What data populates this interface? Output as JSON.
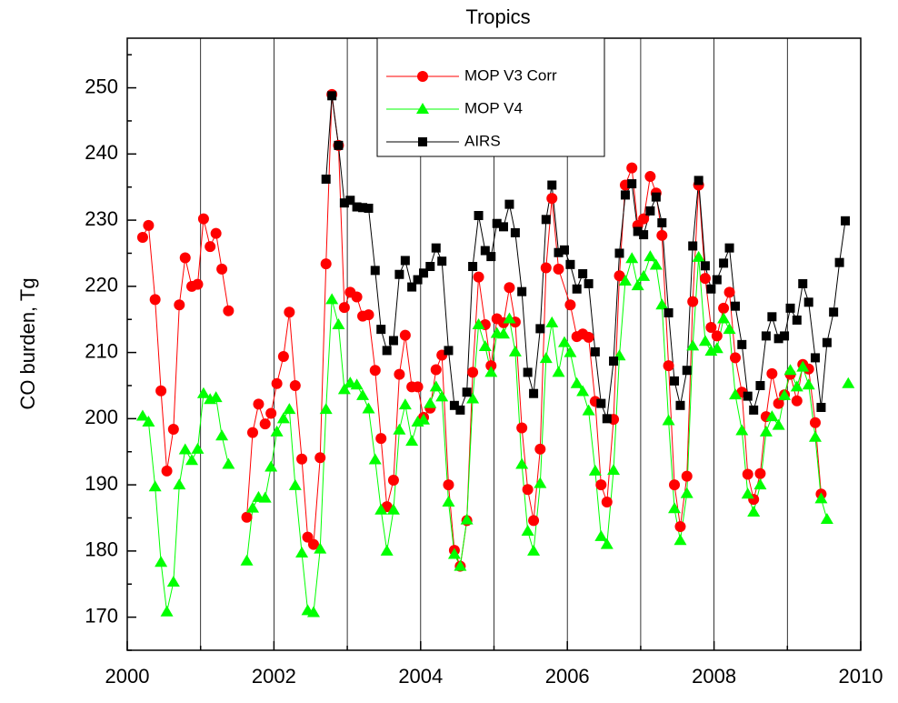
{
  "chart_data": {
    "type": "line",
    "title": "Tropics",
    "y_label": "CO burden, Tg",
    "xlim": [
      2000,
      2010
    ],
    "xticks": [
      2000,
      2002,
      2004,
      2006,
      2008,
      2010
    ],
    "x_minor_ticks": [
      2001,
      2003,
      2005,
      2007,
      2009
    ],
    "ylim": [
      165,
      257.5
    ],
    "yticks": [
      170,
      180,
      190,
      200,
      210,
      220,
      230,
      240,
      250
    ],
    "y_minor_ticks": [
      165,
      175,
      185,
      195,
      205,
      215,
      225,
      235,
      245,
      255
    ],
    "grid": "x",
    "legend": "top-center",
    "series": [
      {
        "name": "MOP V3 Corr",
        "color": "#ff0000",
        "marker": "circle",
        "x": [
          2000.21,
          2000.29,
          2000.38,
          2000.46,
          2000.54,
          2000.63,
          2000.71,
          2000.79,
          2000.88,
          2000.96,
          2001.04,
          2001.13,
          2001.21,
          2001.29,
          2001.38,
          2001.5,
          2001.63,
          2001.71,
          2001.79,
          2001.88,
          2001.96,
          2002.04,
          2002.13,
          2002.21,
          2002.29,
          2002.38,
          2002.46,
          2002.54,
          2002.63,
          2002.71,
          2002.79,
          2002.88,
          2002.96,
          2003.04,
          2003.13,
          2003.21,
          2003.29,
          2003.38,
          2003.46,
          2003.54,
          2003.63,
          2003.71,
          2003.79,
          2003.88,
          2003.96,
          2004.04,
          2004.13,
          2004.21,
          2004.29,
          2004.38,
          2004.46,
          2004.54,
          2004.63,
          2004.71,
          2004.79,
          2004.88,
          2004.96,
          2005.04,
          2005.13,
          2005.21,
          2005.29,
          2005.38,
          2005.46,
          2005.54,
          2005.63,
          2005.71,
          2005.79,
          2005.88,
          2006.04,
          2006.13,
          2006.21,
          2006.29,
          2006.38,
          2006.46,
          2006.54,
          2006.63,
          2006.71,
          2006.79,
          2006.88,
          2006.96,
          2007.04,
          2007.13,
          2007.21,
          2007.29,
          2007.38,
          2007.46,
          2007.54,
          2007.63,
          2007.71,
          2007.79,
          2007.88,
          2007.96,
          2008.04,
          2008.13,
          2008.21,
          2008.29,
          2008.38,
          2008.46,
          2008.54,
          2008.63,
          2008.71,
          2008.79,
          2008.88,
          2008.96,
          2009.04,
          2009.13,
          2009.21,
          2009.29,
          2009.38,
          2009.46
        ],
        "values": [
          227.4,
          229.2,
          218,
          204.2,
          192.1,
          198.4,
          217.2,
          224.3,
          220,
          220.3,
          230.2,
          226,
          228,
          222.6,
          216.3,
          null,
          185.1,
          197.9,
          202.2,
          199.2,
          200.8,
          205.3,
          209.4,
          216.1,
          205,
          193.9,
          182.1,
          181,
          194.1,
          223.4,
          249,
          241.3,
          216.8,
          219.1,
          218.4,
          215.5,
          215.7,
          207.3,
          197,
          186.7,
          190.7,
          206.7,
          212.6,
          204.8,
          204.8,
          200.2,
          201.6,
          207.4,
          209.6,
          190,
          180.1,
          177.7,
          184.6,
          207,
          221.4,
          214.2,
          208,
          215.1,
          214.5,
          219.8,
          214.6,
          198.6,
          189.3,
          184.6,
          195.4,
          222.8,
          233.3,
          222.6,
          217.2,
          212.4,
          212.8,
          212.3,
          202.6,
          190,
          187.4,
          199.9,
          221.6,
          235.3,
          237.9,
          229.2,
          230.2,
          236.6,
          234.1,
          227.7,
          208,
          190,
          183.7,
          191.3,
          217.7,
          235.3,
          221.2,
          213.8,
          212.5,
          216.7,
          219.1,
          209.2,
          204,
          191.6,
          187.8,
          191.7,
          200.3,
          206.8,
          202.3,
          203.6,
          206.7,
          202.7,
          208.2,
          207.5,
          199.4,
          188.6
        ]
      },
      {
        "name": "MOP V4",
        "color": "#00ff00",
        "marker": "triangle",
        "x": [
          2000.21,
          2000.29,
          2000.38,
          2000.46,
          2000.54,
          2000.63,
          2000.71,
          2000.79,
          2000.88,
          2000.96,
          2001.04,
          2001.13,
          2001.21,
          2001.29,
          2001.38,
          2001.5,
          2001.63,
          2001.71,
          2001.79,
          2001.88,
          2001.96,
          2002.04,
          2002.13,
          2002.21,
          2002.29,
          2002.38,
          2002.46,
          2002.54,
          2002.63,
          2002.71,
          2002.79,
          2002.88,
          2002.96,
          2003.04,
          2003.13,
          2003.21,
          2003.29,
          2003.38,
          2003.46,
          2003.54,
          2003.63,
          2003.71,
          2003.79,
          2003.88,
          2003.96,
          2004.04,
          2004.13,
          2004.21,
          2004.29,
          2004.38,
          2004.46,
          2004.54,
          2004.63,
          2004.71,
          2004.79,
          2004.88,
          2004.96,
          2005.04,
          2005.13,
          2005.21,
          2005.29,
          2005.38,
          2005.46,
          2005.54,
          2005.63,
          2005.71,
          2005.79,
          2005.88,
          2005.96,
          2006.04,
          2006.13,
          2006.21,
          2006.29,
          2006.38,
          2006.46,
          2006.54,
          2006.63,
          2006.71,
          2006.79,
          2006.88,
          2006.96,
          2007.04,
          2007.13,
          2007.21,
          2007.29,
          2007.38,
          2007.46,
          2007.54,
          2007.63,
          2007.71,
          2007.79,
          2007.88,
          2007.96,
          2008.04,
          2008.13,
          2008.21,
          2008.29,
          2008.38,
          2008.46,
          2008.54,
          2008.63,
          2008.71,
          2008.79,
          2008.88,
          2008.96,
          2009.04,
          2009.13,
          2009.21,
          2009.29,
          2009.38,
          2009.46,
          2009.54,
          2009.63,
          2009.83
        ],
        "values": [
          200.4,
          199.5,
          189.7,
          178.3,
          170.8,
          175.3,
          190,
          195.3,
          193.7,
          195.4,
          203.8,
          202.9,
          203.2,
          197.4,
          193.1,
          null,
          178.5,
          186.5,
          188.1,
          188,
          192.7,
          198,
          200,
          201.4,
          189.9,
          179.7,
          171,
          170.7,
          180.3,
          201.4,
          218,
          214.2,
          204.4,
          205.4,
          205.1,
          203.5,
          201.5,
          193.8,
          186.2,
          180,
          186.2,
          198.3,
          202.1,
          196.6,
          199.5,
          199.8,
          202.3,
          204.8,
          203.3,
          187.4,
          179.5,
          177.7,
          184.7,
          203,
          214.2,
          210.9,
          207,
          212.9,
          212.8,
          215.1,
          210.1,
          193.1,
          183,
          180,
          190.2,
          209.1,
          214.5,
          207,
          211.5,
          210,
          205.3,
          204.1,
          201.2,
          192.1,
          182.2,
          181,
          192.2,
          209.5,
          220.8,
          224.2,
          220.1,
          221.5,
          224.5,
          223.2,
          217.2,
          199.7,
          186.4,
          181.6,
          188.7,
          211,
          224.4,
          211.7,
          210.2,
          210.6,
          215.1,
          213.5,
          203.6,
          198.2,
          188.6,
          185.9,
          190,
          198,
          200.3,
          199,
          203.5,
          207.3,
          204.8,
          207.8,
          205.1,
          197.2,
          187.9,
          184.8,
          null,
          205.3
        ]
      },
      {
        "name": "AIRS",
        "color": "#000000",
        "marker": "square",
        "x": [
          2002.71,
          2002.79,
          2002.88,
          2002.96,
          2003.04,
          2003.13,
          2003.21,
          2003.29,
          2003.38,
          2003.46,
          2003.54,
          2003.63,
          2003.71,
          2003.79,
          2003.88,
          2003.96,
          2004.04,
          2004.13,
          2004.21,
          2004.29,
          2004.38,
          2004.46,
          2004.54,
          2004.63,
          2004.71,
          2004.79,
          2004.88,
          2004.96,
          2005.04,
          2005.13,
          2005.21,
          2005.29,
          2005.38,
          2005.46,
          2005.54,
          2005.63,
          2005.71,
          2005.79,
          2005.88,
          2005.96,
          2006.04,
          2006.13,
          2006.21,
          2006.29,
          2006.38,
          2006.46,
          2006.54,
          2006.63,
          2006.71,
          2006.79,
          2006.88,
          2006.96,
          2007.04,
          2007.13,
          2007.21,
          2007.29,
          2007.38,
          2007.46,
          2007.54,
          2007.63,
          2007.71,
          2007.79,
          2007.88,
          2007.96,
          2008.04,
          2008.13,
          2008.21,
          2008.29,
          2008.38,
          2008.46,
          2008.54,
          2008.63,
          2008.71,
          2008.79,
          2008.88,
          2008.96,
          2009.04,
          2009.13,
          2009.21,
          2009.29,
          2009.38,
          2009.46,
          2009.54,
          2009.63,
          2009.71,
          2009.79
        ],
        "values": [
          236.2,
          248.8,
          241.3,
          232.6,
          233,
          232,
          231.9,
          231.8,
          222.4,
          213.5,
          210.3,
          211.8,
          221.8,
          223.9,
          219.9,
          221,
          222,
          223,
          225.8,
          223.8,
          210.3,
          202,
          201.3,
          204,
          223,
          230.7,
          225.4,
          224.5,
          229.5,
          229,
          232.4,
          228.1,
          219.2,
          207,
          203.8,
          213.6,
          230.1,
          235.3,
          225.1,
          225.5,
          223.3,
          219.6,
          221.9,
          220.4,
          210.1,
          202.3,
          200,
          208.7,
          225,
          233.8,
          235.5,
          228.3,
          227.8,
          231.4,
          233.5,
          229.6,
          216,
          205.7,
          202,
          207.3,
          226.1,
          236,
          223.1,
          219.6,
          221,
          223.5,
          225.8,
          217,
          211.2,
          203.4,
          201.3,
          205,
          212.5,
          215.4,
          212.1,
          212.5,
          216.7,
          214.9,
          220.4,
          217.6,
          209.2,
          201.7,
          211.5,
          216.1,
          223.6,
          229.9
        ]
      }
    ]
  }
}
